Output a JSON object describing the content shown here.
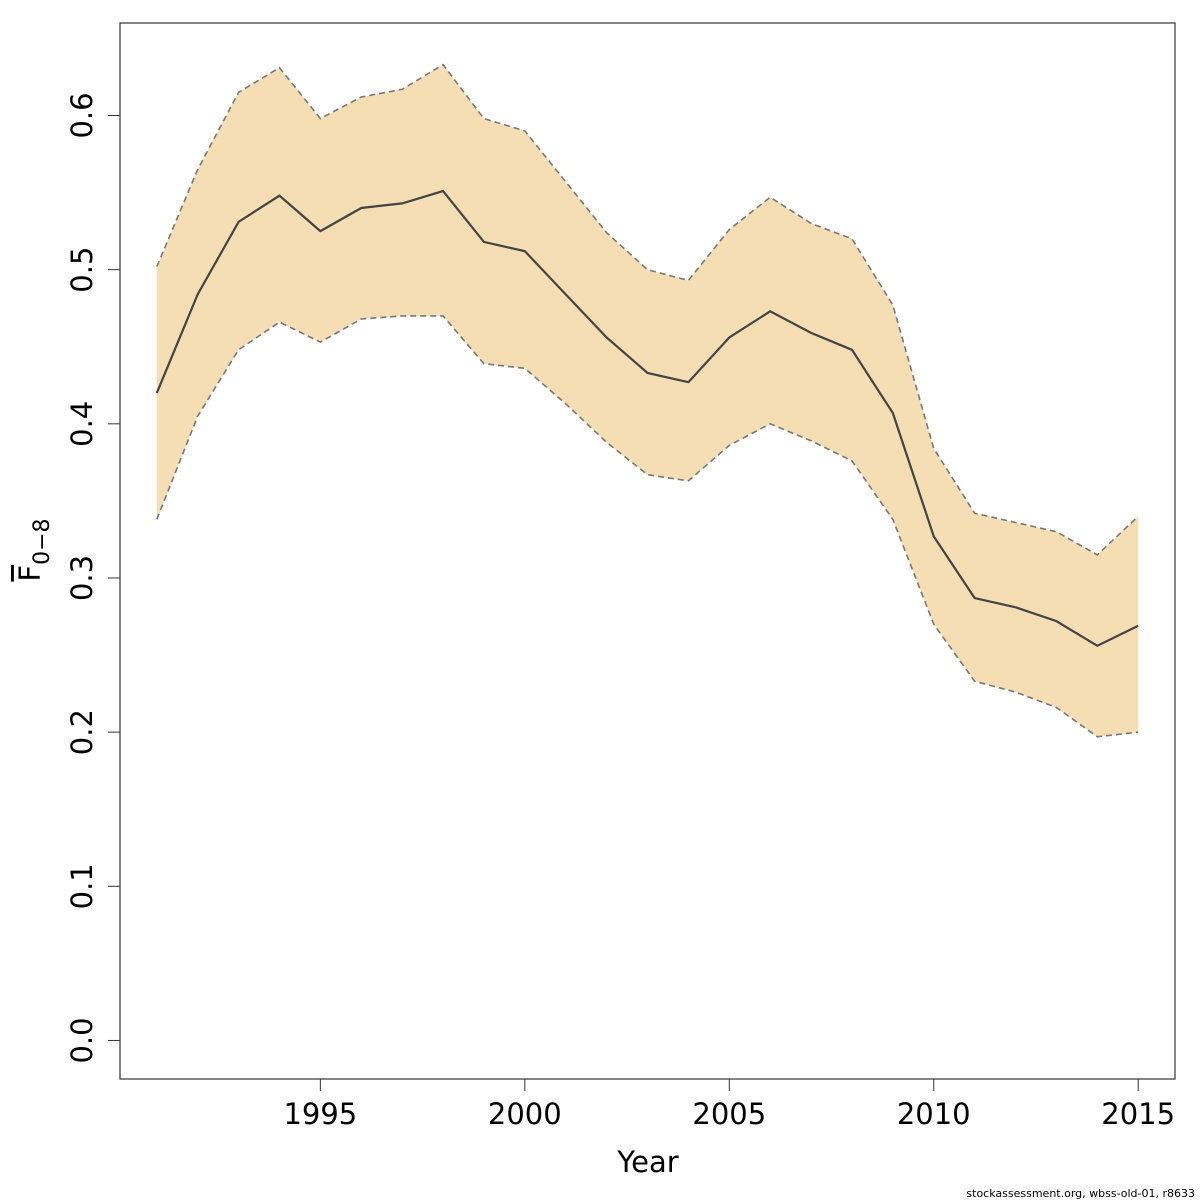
{
  "chart_data": {
    "type": "line",
    "xlabel": "Year",
    "ylabel": {
      "base": "F",
      "subscript": "0−8"
    },
    "x_ticks": [
      1995,
      2000,
      2005,
      2010,
      2015
    ],
    "y_ticks": [
      "0.0",
      "0.1",
      "0.2",
      "0.3",
      "0.4",
      "0.5",
      "0.6"
    ],
    "xlim": [
      1990.1,
      2015.9
    ],
    "ylim": [
      -0.025,
      0.66
    ],
    "band_fill_color": "#F5DEB3",
    "line_color": "#444444",
    "bound_line_color": "#777777",
    "x": [
      1991,
      1992,
      1993,
      1994,
      1995,
      1996,
      1997,
      1998,
      1999,
      2000,
      2001,
      2002,
      2003,
      2004,
      2005,
      2006,
      2007,
      2008,
      2009,
      2010,
      2011,
      2012,
      2013,
      2014,
      2015
    ],
    "series": [
      {
        "role": "estimate",
        "values": [
          0.42,
          0.484,
          0.531,
          0.548,
          0.525,
          0.54,
          0.543,
          0.551,
          0.518,
          0.512,
          0.484,
          0.456,
          0.433,
          0.427,
          0.456,
          0.473,
          0.459,
          0.448,
          0.407,
          0.327,
          0.287,
          0.281,
          0.272,
          0.256,
          0.269
        ]
      },
      {
        "role": "upper",
        "values": [
          0.502,
          0.565,
          0.615,
          0.631,
          0.598,
          0.612,
          0.617,
          0.633,
          0.598,
          0.59,
          0.557,
          0.524,
          0.5,
          0.493,
          0.526,
          0.547,
          0.53,
          0.52,
          0.477,
          0.384,
          0.342,
          0.336,
          0.33,
          0.315,
          0.34
        ]
      },
      {
        "role": "lower",
        "values": [
          0.338,
          0.405,
          0.448,
          0.466,
          0.453,
          0.468,
          0.47,
          0.47,
          0.439,
          0.436,
          0.413,
          0.388,
          0.367,
          0.363,
          0.386,
          0.4,
          0.389,
          0.376,
          0.338,
          0.27,
          0.233,
          0.226,
          0.216,
          0.197,
          0.2
        ]
      }
    ]
  },
  "footer": "stockassessment.org, wbss-old-01, r8633"
}
